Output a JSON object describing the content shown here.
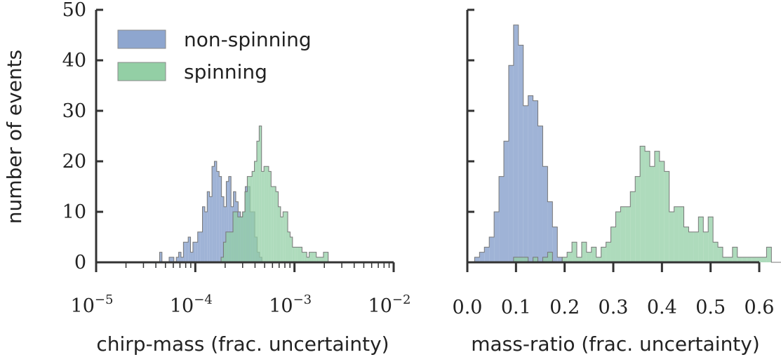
{
  "chart_data": [
    {
      "type": "histogram",
      "xscale": "log",
      "xlabel": "chirp-mass (frac. uncertainty)",
      "ylabel": "number of events",
      "xlim": [
        1e-05,
        0.01
      ],
      "ylim": [
        0,
        50
      ],
      "x_tick_labels": [
        {
          "base": "10",
          "exp": "−5"
        },
        {
          "base": "10",
          "exp": "−4"
        },
        {
          "base": "10",
          "exp": "−3"
        },
        {
          "base": "10",
          "exp": "−2"
        }
      ],
      "y_tick_labels": [
        "0",
        "10",
        "20",
        "30",
        "40",
        "50"
      ],
      "legend": {
        "placement": "top-left",
        "entries": [
          "non-spinning",
          "spinning"
        ]
      },
      "series": [
        {
          "name": "non-spinning",
          "color": "#8ea6cf",
          "bin_start_log10": -4.36,
          "bin_width_log10": 0.024,
          "counts": [
            2,
            0,
            0,
            0,
            1,
            1,
            0,
            1,
            2,
            1,
            4,
            4,
            5,
            2,
            4,
            4,
            6,
            6,
            11,
            10,
            14,
            13,
            19,
            20,
            18,
            17,
            13,
            11,
            16,
            17,
            11,
            14,
            12,
            10,
            9,
            10,
            15,
            15,
            10,
            10,
            5,
            2,
            1
          ]
        },
        {
          "name": "spinning",
          "color": "#93cfa5",
          "bin_start_log10": -3.74,
          "bin_width_log10": 0.024,
          "counts": [
            1,
            4,
            6,
            6,
            6,
            10,
            10,
            9,
            9,
            10,
            14,
            17,
            17,
            18,
            20,
            24,
            27,
            18,
            19,
            19,
            18,
            15,
            15,
            14,
            11,
            9,
            10,
            10,
            6,
            5,
            3,
            3,
            3,
            3,
            2,
            2,
            1,
            2,
            2,
            2,
            1,
            1,
            1,
            2,
            2
          ]
        }
      ]
    },
    {
      "type": "histogram",
      "xlabel": "mass-ratio (frac. uncertainty)",
      "xlim": [
        0,
        0.6
      ],
      "ylim": [
        0,
        50
      ],
      "x_tick_labels": [
        "0.0",
        "0.1",
        "0.2",
        "0.3",
        "0.4",
        "0.5",
        "0.6"
      ],
      "series": [
        {
          "name": "non-spinning",
          "color": "#8ea6cf",
          "bin_start": 0.015,
          "bin_width": 0.01,
          "counts": [
            1,
            2,
            3,
            5,
            10,
            17,
            24,
            39,
            47,
            43,
            31,
            33,
            32,
            27,
            19,
            12,
            7,
            1
          ]
        },
        {
          "name": "spinning",
          "color": "#93cfa5",
          "bin_start": 0.095,
          "bin_width": 0.01,
          "counts": [
            1,
            1,
            1,
            0,
            1,
            0,
            1,
            2,
            0,
            0,
            1,
            2,
            4,
            1,
            4,
            2,
            3,
            1,
            3,
            4,
            7,
            10,
            11,
            11,
            14,
            17,
            23,
            22,
            19,
            22,
            20,
            18,
            10,
            11,
            11,
            7,
            6,
            6,
            9,
            6,
            9,
            4,
            3,
            1,
            1,
            3,
            1,
            1,
            1,
            1,
            1,
            1,
            3,
            0,
            0,
            0,
            0,
            0,
            0,
            0,
            0,
            0,
            0,
            0,
            0,
            1,
            1
          ]
        }
      ]
    }
  ]
}
